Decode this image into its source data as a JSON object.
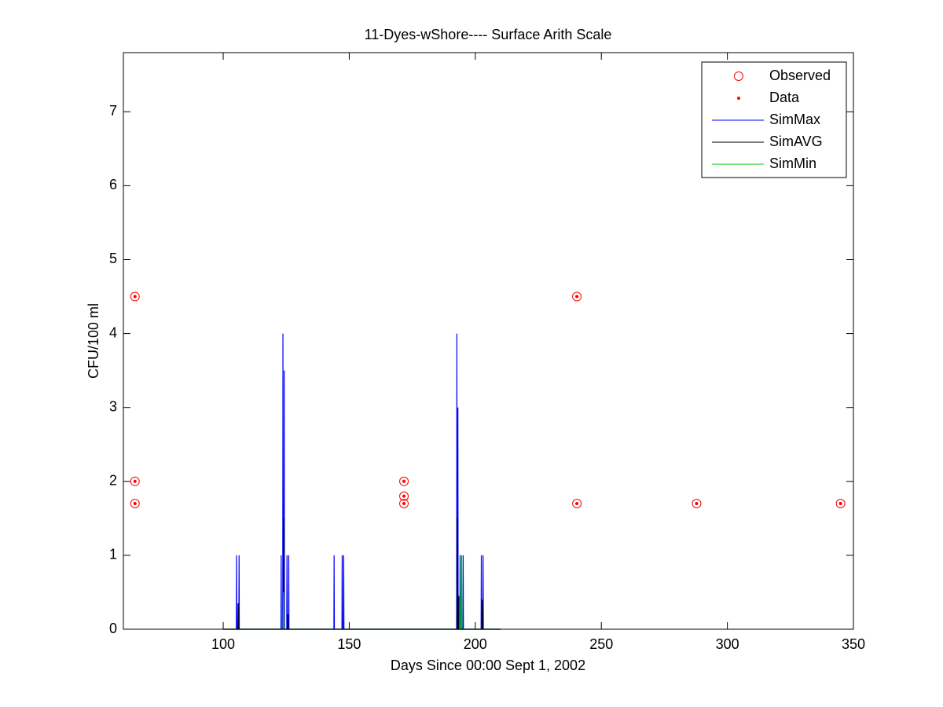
{
  "chart_data": {
    "type": "line",
    "title": "11-Dyes-wShore---- Surface Arith Scale",
    "x_label": "Days Since 00:00 Sept 1, 2002",
    "y_label": "CFU/100 ml",
    "xlim": [
      60.4,
      350
    ],
    "ylim": [
      0,
      7.8
    ],
    "xticks": [
      100,
      150,
      200,
      250,
      300,
      350
    ],
    "yticks": [
      0,
      1,
      2,
      3,
      4,
      5,
      6,
      7
    ],
    "legend": "upper right",
    "series": [
      {
        "name": "Observed",
        "marker": "circle",
        "color": "#ff0000",
        "x": [
          65,
          65,
          65,
          171.7,
          171.7,
          171.7,
          240.3,
          240.3,
          287.8,
          344.9
        ],
        "values": [
          4.5,
          2,
          1.7,
          2,
          1.8,
          1.7,
          4.5,
          1.7,
          1.7,
          1.7
        ]
      },
      {
        "name": "Data",
        "marker": "dot",
        "color": "#ff0000",
        "x": [
          65,
          65,
          65,
          171.7,
          171.7,
          171.7,
          240.3,
          240.3,
          287.8,
          344.9
        ],
        "values": [
          4.5,
          2,
          1.7,
          2,
          1.8,
          1.7,
          4.5,
          1.7,
          1.7,
          1.7
        ]
      },
      {
        "name": "SimMax",
        "marker": "line",
        "color": "#0000ff",
        "x": [
          100,
          105.2,
          105.3,
          105.4,
          106.2,
          106.3,
          106.4,
          122.9,
          123,
          123.1,
          123.6,
          123.7,
          123.8,
          124.1,
          124.2,
          124.3,
          125.2,
          125.3,
          125.4,
          125.9,
          126,
          126.1,
          143.9,
          144,
          144.1,
          147.1,
          147.2,
          147.3,
          147.7,
          147.8,
          147.9,
          192.6,
          192.7,
          192.8,
          193.0,
          193.1,
          193.2,
          194.3,
          194.4,
          194.5,
          195.1,
          195.2,
          195.3,
          202.3,
          202.4,
          202.5,
          203.0,
          203.1,
          203.2,
          210
        ],
        "values": [
          0,
          0,
          1,
          0,
          0,
          1,
          0,
          0,
          1,
          0,
          0,
          4,
          0,
          0,
          3.5,
          0,
          0,
          1,
          0,
          0,
          1,
          0,
          0,
          1,
          0,
          0,
          1,
          0,
          0,
          1,
          0,
          0,
          4,
          0,
          0,
          3,
          0,
          0,
          1,
          0,
          0,
          1,
          0,
          0,
          1,
          0,
          0,
          1,
          0,
          0
        ]
      },
      {
        "name": "SimAVG",
        "marker": "line",
        "color": "#000000",
        "x": [
          100,
          105.8,
          105.9,
          106.0,
          123.9,
          124.0,
          124.1,
          125.5,
          125.6,
          125.7,
          192.8,
          192.9,
          193.0,
          193.4,
          193.5,
          193.6,
          202.7,
          202.8,
          202.9,
          210
        ],
        "values": [
          0,
          0,
          0.35,
          0,
          0,
          1.5,
          0,
          0,
          0.2,
          0,
          0,
          1.5,
          0,
          0,
          0.45,
          0,
          0,
          0.4,
          0,
          0
        ]
      },
      {
        "name": "SimMin",
        "marker": "line",
        "color": "#00cc00",
        "x": [
          100,
          123.8,
          123.9,
          124.0,
          193.8,
          193.9,
          194.0,
          194.5,
          194.6,
          194.7,
          210
        ],
        "values": [
          0,
          0,
          0.5,
          0,
          0,
          1,
          0,
          0,
          1,
          0,
          0
        ]
      }
    ]
  }
}
